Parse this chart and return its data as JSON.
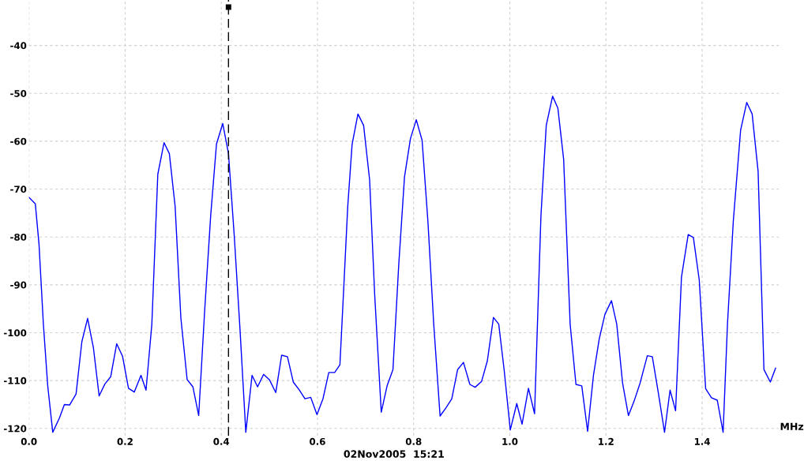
{
  "chart_data": {
    "type": "line",
    "xlabel": "MHz",
    "x": [
      0,
      0.0133,
      0.021,
      0.03,
      0.039,
      0.0495,
      0.0634,
      0.0737,
      0.0846,
      0.098,
      0.11,
      0.122,
      0.134,
      0.146,
      0.158,
      0.17,
      0.1825,
      0.1946,
      0.207,
      0.219,
      0.233,
      0.2435,
      0.2556,
      0.268,
      0.281,
      0.292,
      0.304,
      0.316,
      0.329,
      0.341,
      0.353,
      0.3656,
      0.378,
      0.39,
      0.403,
      0.415,
      0.427,
      0.439,
      0.451,
      0.464,
      0.4755,
      0.488,
      0.5,
      0.5133,
      0.5255,
      0.5376,
      0.5497,
      0.5618,
      0.574,
      0.586,
      0.599,
      0.6115,
      0.6236,
      0.6358,
      0.6467,
      0.654,
      0.663,
      0.672,
      0.6842,
      0.696,
      0.7085,
      0.719,
      0.7327,
      0.7448,
      0.757,
      0.769,
      0.781,
      0.7933,
      0.8055,
      0.8176,
      0.8297,
      0.8418,
      0.855,
      0.8673,
      0.8794,
      0.8915,
      0.9036,
      0.917,
      0.9279,
      0.9412,
      0.9533,
      0.966,
      0.977,
      0.9885,
      1.001,
      1.0145,
      1.0255,
      1.0388,
      1.0515,
      1.0648,
      1.0758,
      1.089,
      1.1,
      1.112,
      1.1255,
      1.1376,
      1.1497,
      1.1618,
      1.174,
      1.186,
      1.198,
      1.2115,
      1.2224,
      1.2345,
      1.2467,
      1.2588,
      1.271,
      1.286,
      1.2964,
      1.3085,
      1.3218,
      1.3333,
      1.3448,
      1.357,
      1.371,
      1.3818,
      1.394,
      1.4073,
      1.4194,
      1.4315,
      1.4436,
      1.4527,
      1.4648,
      1.48,
      1.4927,
      1.504,
      1.5164,
      1.5285,
      1.5418,
      1.5527
    ],
    "series": [
      {
        "color": "#0000ff",
        "values": [
          -71.7,
          -73.1,
          -81.6,
          -98.2,
          -111,
          -120.8,
          -117.8,
          -115,
          -115.1,
          -112.8,
          -101.9,
          -97,
          -103.1,
          -113.2,
          -110.7,
          -109.2,
          -102.3,
          -104.9,
          -111.6,
          -112.4,
          -108.9,
          -112,
          -98.2,
          -66.9,
          -60.3,
          -62.6,
          -73.6,
          -97,
          -109.8,
          -111.3,
          -117.3,
          -95.1,
          -75.5,
          -60.6,
          -56.3,
          -62.6,
          -79.8,
          -99.4,
          -120.8,
          -108.9,
          -111.3,
          -108.7,
          -109.8,
          -112.5,
          -104.7,
          -105,
          -110.3,
          -111.9,
          -113.8,
          -113.5,
          -117.1,
          -113.8,
          -108.3,
          -108.3,
          -106.7,
          -92,
          -73.6,
          -60.7,
          -54.3,
          -56.7,
          -68.1,
          -92,
          -116.6,
          -111.1,
          -107.7,
          -85.9,
          -67.5,
          -59.5,
          -55.5,
          -59.8,
          -76.7,
          -98.2,
          -117.4,
          -115.7,
          -113.8,
          -107.7,
          -106.2,
          -110.8,
          -111.4,
          -110.2,
          -105.9,
          -96.8,
          -98.2,
          -108,
          -120.3,
          -114.8,
          -119.1,
          -111.6,
          -116.9,
          -75.5,
          -56.7,
          -50.6,
          -53.1,
          -63.8,
          -98.2,
          -110.8,
          -111.1,
          -120.6,
          -108.9,
          -101.3,
          -96.1,
          -93.3,
          -98.2,
          -110.5,
          -117.3,
          -114.2,
          -110.5,
          -104.8,
          -105,
          -112.3,
          -120.8,
          -112,
          -116.3,
          -88.4,
          -79.5,
          -80.1,
          -89,
          -111.7,
          -113.6,
          -114.1,
          -120.8,
          -98.2,
          -76.7,
          -57.7,
          -51.9,
          -54.3,
          -66.3,
          -107.7,
          -110.3,
          -107.4
        ]
      }
    ],
    "xlim": [
      0,
      1.56
    ],
    "ylim": [
      -121.5,
      -30.5
    ],
    "xticks": [
      {
        "value": 0,
        "label": "0.0"
      },
      {
        "value": 0.2,
        "label": "0.2"
      },
      {
        "value": 0.4,
        "label": "0.4"
      },
      {
        "value": 0.6,
        "label": "0.6"
      },
      {
        "value": 0.8,
        "label": "0.8"
      },
      {
        "value": 1.0,
        "label": "1.0"
      },
      {
        "value": 1.2,
        "label": "1.2"
      },
      {
        "value": 1.4,
        "label": "1.4"
      }
    ],
    "yticks": [
      -40,
      -50,
      -60,
      -70,
      -80,
      -90,
      -100,
      -110,
      -120
    ],
    "grid": true,
    "marker": "none",
    "line_style": "solid",
    "ref_lines": [
      {
        "axis": "x",
        "value": 0.415,
        "color": "#000000",
        "line_style": "dashed"
      }
    ],
    "annotations": [
      "02Nov2005  15:21"
    ]
  }
}
